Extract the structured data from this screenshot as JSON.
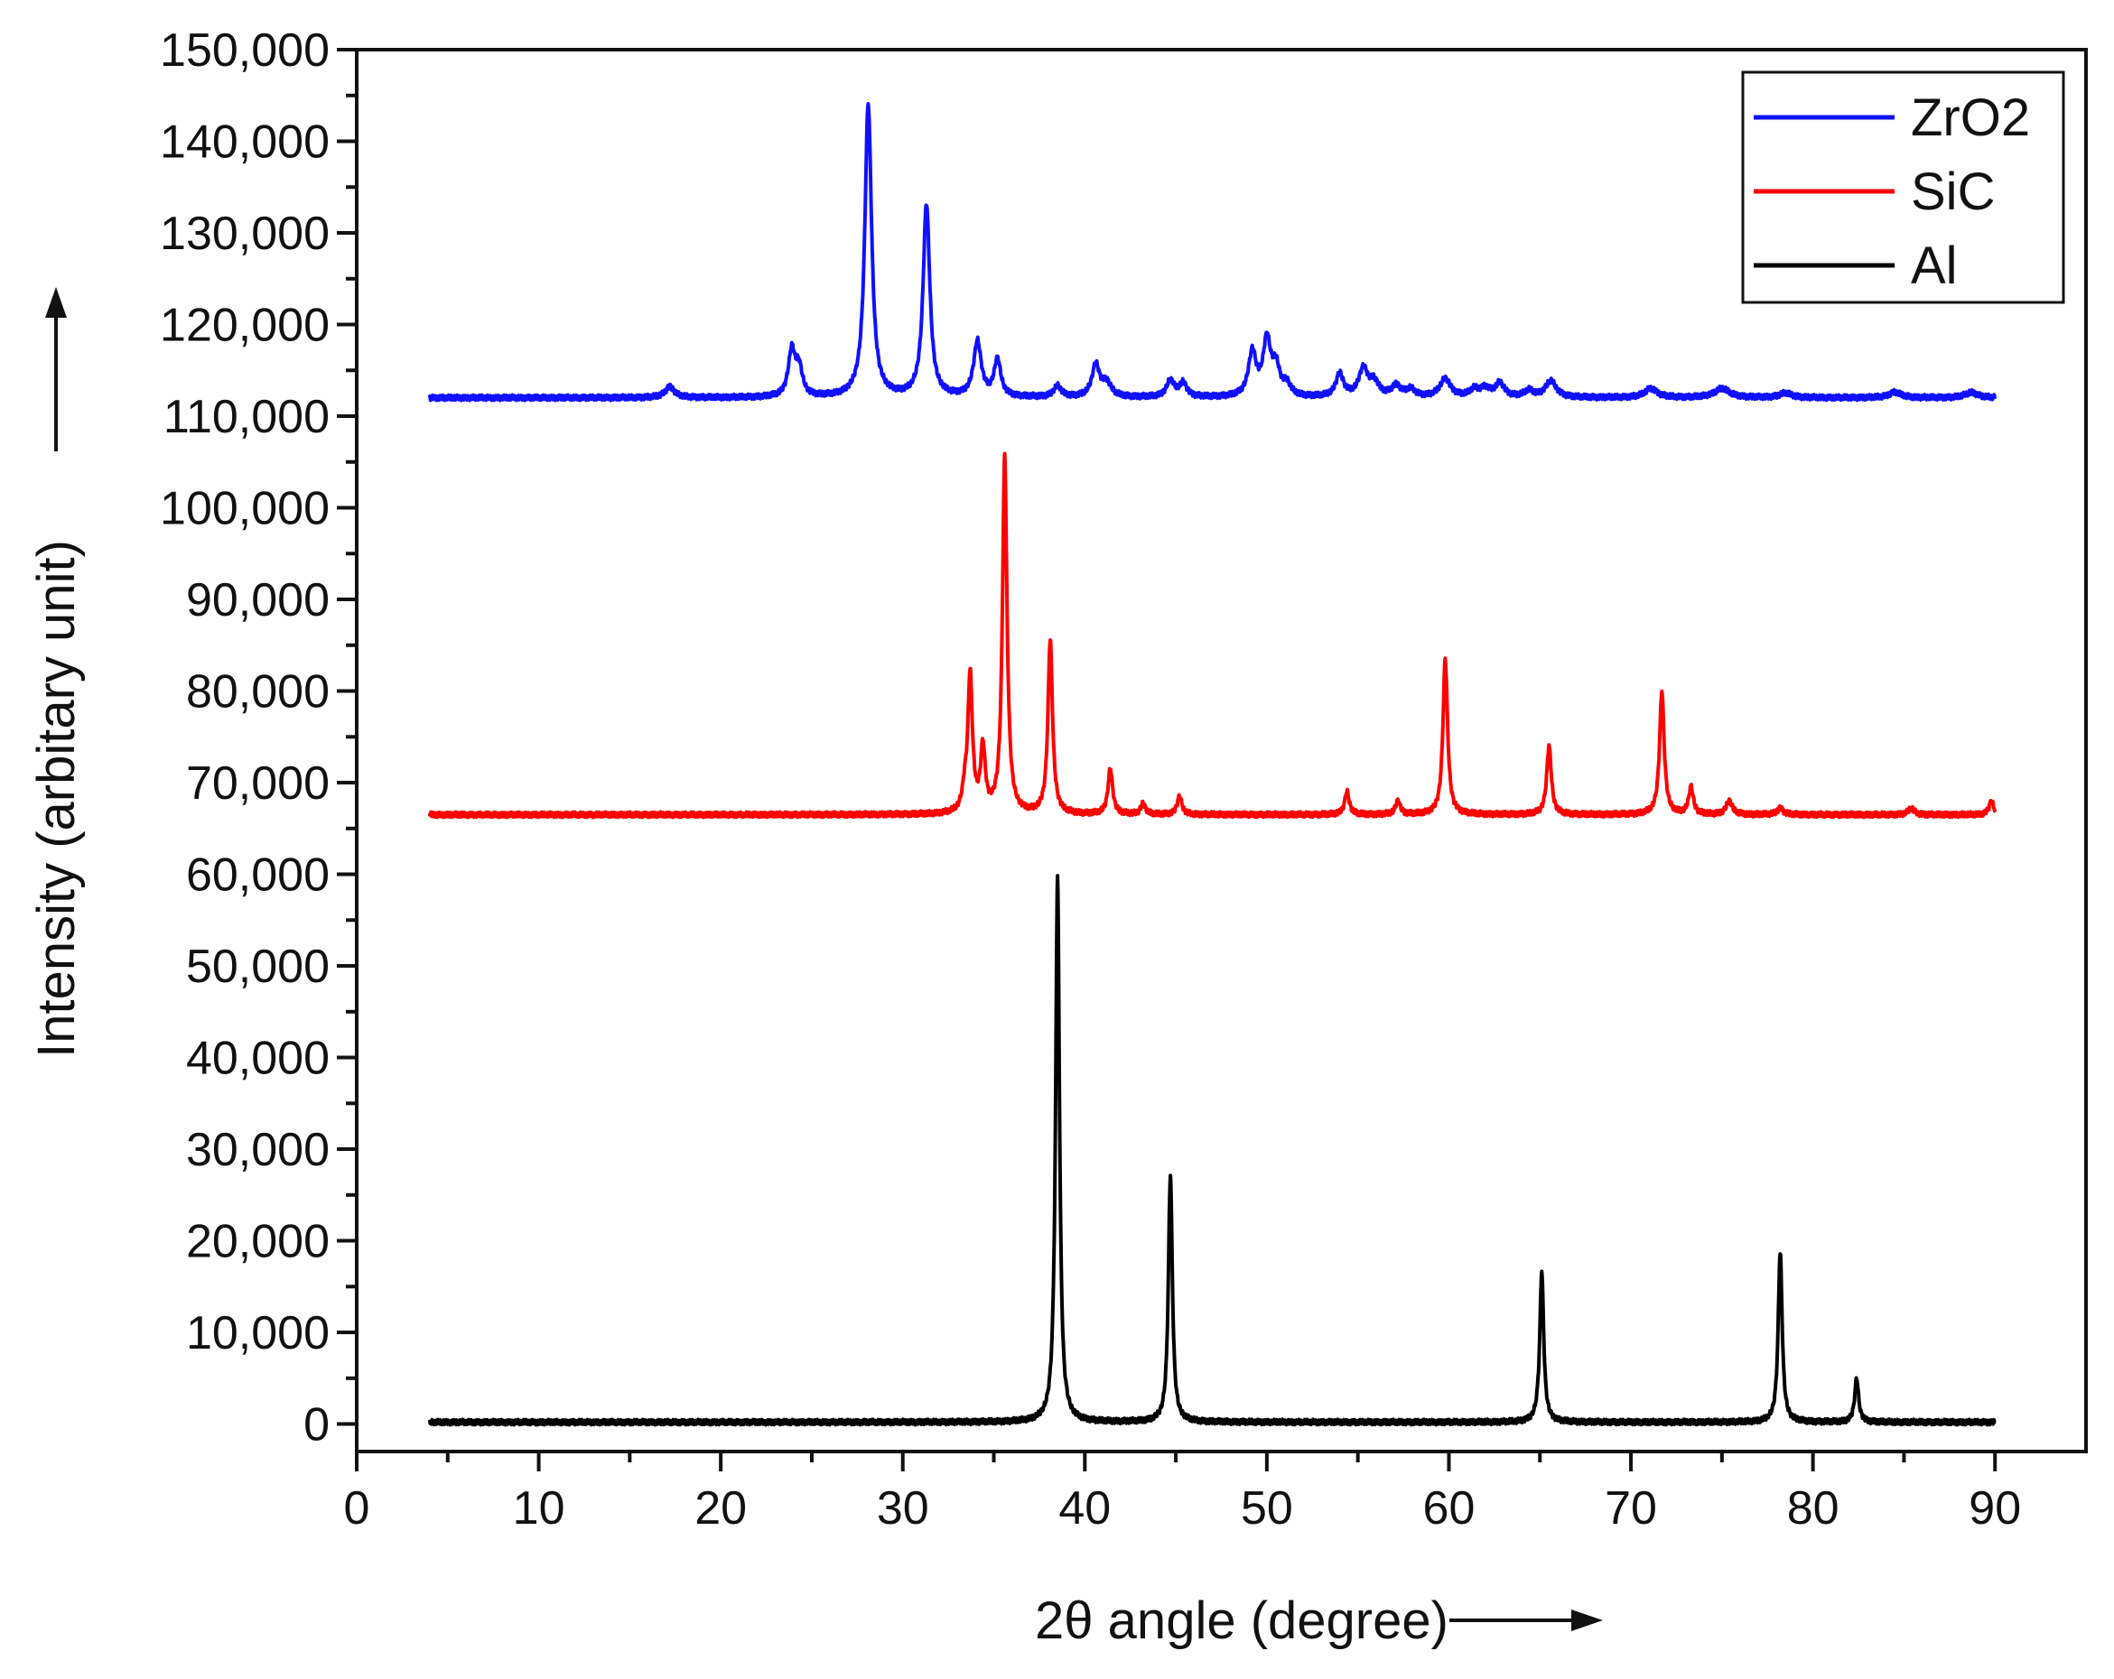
{
  "chart_data": {
    "type": "line",
    "xlabel": "2θ angle (degree)",
    "ylabel": "Intensity (arbitary unit)",
    "xlim": [
      0,
      95
    ],
    "ylim": [
      -3000,
      150000
    ],
    "x_ticks": [
      "0",
      "10",
      "20",
      "30",
      "40",
      "50",
      "60",
      "70",
      "80",
      "90"
    ],
    "y_ticks": [
      "0",
      "10,000",
      "20,000",
      "30,000",
      "40,000",
      "50,000",
      "60,000",
      "70,000",
      "80,000",
      "90,000",
      "100,000",
      "110,000",
      "120,000",
      "130,000",
      "140,000",
      "150,000"
    ],
    "legend_position": "top-right",
    "x_range": [
      4,
      90
    ],
    "series": [
      {
        "name": "ZrO2",
        "color": "#1010ff",
        "baseline": 112000,
        "peaks": [
          [
            17.2,
            1200,
            0.3
          ],
          [
            23.9,
            5000,
            0.22
          ],
          [
            24.3,
            3000,
            0.22
          ],
          [
            28.1,
            32000,
            0.22
          ],
          [
            31.3,
            21000,
            0.22
          ],
          [
            34.1,
            6000,
            0.25
          ],
          [
            35.2,
            4000,
            0.22
          ],
          [
            38.5,
            1200,
            0.25
          ],
          [
            40.6,
            3500,
            0.25
          ],
          [
            41.2,
            1500,
            0.3
          ],
          [
            44.7,
            1800,
            0.25
          ],
          [
            45.4,
            1500,
            0.25
          ],
          [
            49.2,
            4800,
            0.25
          ],
          [
            50.0,
            6000,
            0.25
          ],
          [
            50.5,
            3000,
            0.25
          ],
          [
            51.1,
            1200,
            0.25
          ],
          [
            54.0,
            2500,
            0.25
          ],
          [
            55.3,
            3000,
            0.3
          ],
          [
            55.9,
            1500,
            0.3
          ],
          [
            57.1,
            1200,
            0.3
          ],
          [
            57.9,
            800,
            0.3
          ],
          [
            59.8,
            2000,
            0.35
          ],
          [
            61.4,
            800,
            0.3
          ],
          [
            62.0,
            900,
            0.3
          ],
          [
            62.8,
            1500,
            0.3
          ],
          [
            64.4,
            700,
            0.3
          ],
          [
            65.6,
            1800,
            0.35
          ],
          [
            71.1,
            1000,
            0.4
          ],
          [
            75.0,
            1000,
            0.5
          ],
          [
            78.5,
            500,
            0.4
          ],
          [
            84.5,
            600,
            0.4
          ],
          [
            88.7,
            600,
            0.4
          ]
        ]
      },
      {
        "name": "SiC",
        "color": "#ff0000",
        "baseline": 66500,
        "peaks": [
          [
            33.4,
            2000,
            0.15
          ],
          [
            33.7,
            15000,
            0.15
          ],
          [
            34.4,
            7000,
            0.15
          ],
          [
            35.6,
            39000,
            0.15
          ],
          [
            38.1,
            19000,
            0.15
          ],
          [
            41.4,
            5000,
            0.15
          ],
          [
            43.2,
            1200,
            0.15
          ],
          [
            45.2,
            2000,
            0.15
          ],
          [
            54.4,
            2500,
            0.15
          ],
          [
            57.2,
            1500,
            0.15
          ],
          [
            59.8,
            17000,
            0.15
          ],
          [
            65.5,
            7500,
            0.15
          ],
          [
            71.7,
            13500,
            0.15
          ],
          [
            73.3,
            3000,
            0.15
          ],
          [
            75.4,
            1500,
            0.2
          ],
          [
            78.2,
            700,
            0.2
          ],
          [
            85.4,
            700,
            0.2
          ],
          [
            89.8,
            1500,
            0.15
          ]
        ]
      },
      {
        "name": "Al",
        "color": "#000000",
        "baseline": 200,
        "peaks": [
          [
            38.5,
            59500,
            0.13
          ],
          [
            44.7,
            27000,
            0.13
          ],
          [
            65.1,
            16500,
            0.13
          ],
          [
            78.2,
            18500,
            0.13
          ],
          [
            82.4,
            4800,
            0.13
          ]
        ]
      }
    ]
  }
}
